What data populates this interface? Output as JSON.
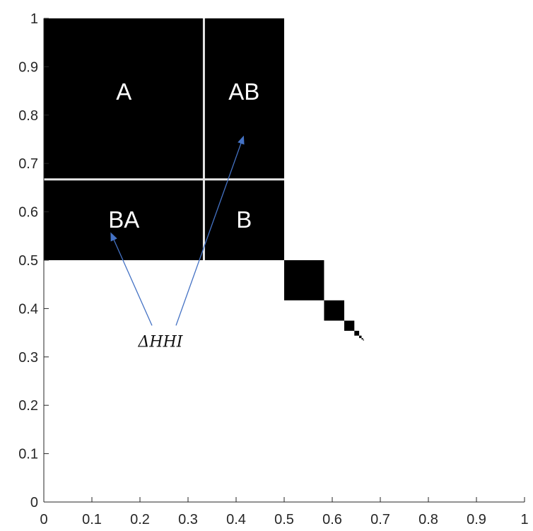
{
  "chart_data": {
    "type": "heatmap",
    "title": "",
    "xlabel": "",
    "ylabel": "",
    "xlim": [
      0,
      1
    ],
    "ylim": [
      0,
      1
    ],
    "grid": false,
    "x_ticks": [
      "0",
      "0.1",
      "0.2",
      "0.3",
      "0.4",
      "0.5",
      "0.6",
      "0.7",
      "0.8",
      "0.9",
      "1"
    ],
    "y_ticks": [
      "0",
      "0.1",
      "0.2",
      "0.3",
      "0.4",
      "0.5",
      "0.6",
      "0.7",
      "0.8",
      "0.9",
      "1"
    ],
    "fill_color": "#000000",
    "separator_color": "#e6e6e6",
    "arrow_color": "#4472c4",
    "regions": [
      {
        "label": "A",
        "x": [
          0,
          0.333
        ],
        "y": [
          0.667,
          1
        ]
      },
      {
        "label": "AB",
        "x": [
          0.333,
          0.5
        ],
        "y": [
          0.667,
          1
        ]
      },
      {
        "label": "BA",
        "x": [
          0,
          0.333
        ],
        "y": [
          0.5,
          0.667
        ]
      },
      {
        "label": "B",
        "x": [
          0.333,
          0.5
        ],
        "y": [
          0.5,
          0.667
        ]
      },
      {
        "label": "",
        "x": [
          0.5,
          0.583
        ],
        "y": [
          0.417,
          0.5
        ]
      },
      {
        "label": "",
        "x": [
          0.583,
          0.625
        ],
        "y": [
          0.375,
          0.417
        ]
      },
      {
        "label": "",
        "x": [
          0.625,
          0.646
        ],
        "y": [
          0.354,
          0.375
        ]
      },
      {
        "label": "",
        "x": [
          0.646,
          0.656
        ],
        "y": [
          0.344,
          0.354
        ]
      },
      {
        "label": "",
        "x": [
          0.656,
          0.661
        ],
        "y": [
          0.339,
          0.344
        ]
      },
      {
        "label": "",
        "x": [
          0.661,
          0.664
        ],
        "y": [
          0.336,
          0.339
        ]
      },
      {
        "label": "",
        "x": [
          0.664,
          0.666
        ],
        "y": [
          0.334,
          0.336
        ]
      }
    ],
    "annotation": {
      "text": "ΔHHI",
      "targets": [
        "BA",
        "AB"
      ]
    }
  }
}
